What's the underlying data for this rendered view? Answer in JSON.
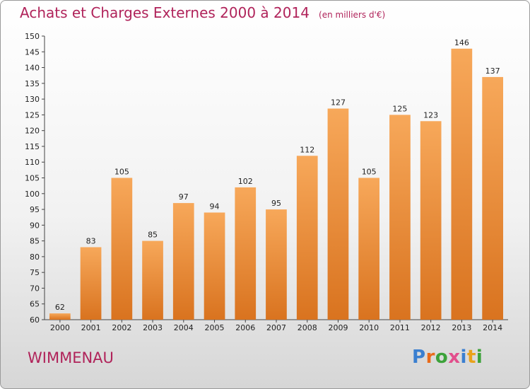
{
  "header": {
    "title": "Achats et Charges Externes 2000 à 2014",
    "subtitle": "(en milliers d'€)"
  },
  "footer": {
    "commune": "WIMMENAU",
    "logo": [
      "P",
      "r",
      "o",
      "x",
      "i",
      "t",
      "i"
    ]
  },
  "colors": {
    "title": "#b0235a",
    "bar_light": "#f7a85a",
    "bar_dark": "#d9731f",
    "logo": [
      "#3a7fd0",
      "#e96b1a",
      "#3ca23a",
      "#e24f8c",
      "#3a7fd0",
      "#e9a21a",
      "#3ca23a"
    ]
  },
  "chart_data": {
    "type": "bar",
    "title": "Achats et Charges Externes 2000 à 2014",
    "categories": [
      "2000",
      "2001",
      "2002",
      "2003",
      "2004",
      "2005",
      "2006",
      "2007",
      "2008",
      "2009",
      "2010",
      "2011",
      "2012",
      "2013",
      "2014"
    ],
    "values": [
      62,
      83,
      105,
      85,
      97,
      94,
      102,
      95,
      112,
      127,
      105,
      125,
      123,
      146,
      137
    ],
    "ylim": [
      60,
      150
    ],
    "yticks": [
      60,
      65,
      70,
      75,
      80,
      85,
      90,
      95,
      100,
      105,
      110,
      115,
      120,
      125,
      130,
      135,
      140,
      145,
      150
    ],
    "grid": false,
    "data_labels": true
  }
}
